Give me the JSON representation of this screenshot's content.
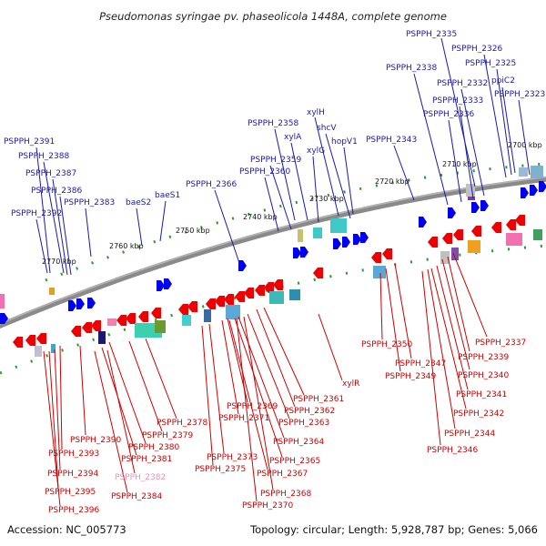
{
  "title": "Pseudomonas syringae pv. phaseolicola 1448A, complete genome",
  "accession": "Accession: NC_005773",
  "summary": "Topology: circular; Length: 5,928,787 bp; Genes: 5,066",
  "colors": {
    "backbone": "#808080",
    "forward": "#0000ee",
    "reverse": "#ee0000",
    "tick": "#2a9a2a",
    "label_blue": "#1a1aaa",
    "label_red": "#cc0000",
    "label_pink": "#f090b0"
  },
  "scale_labels": [
    "2700 kbp",
    "2710 kbp",
    "2720 kbp",
    "2730 kbp",
    "2740 kbp",
    "2750 kbp",
    "2760 kbp",
    "2770 kbp"
  ],
  "blue_labels": [
    "PSPPH_2335",
    "PSPPH_2326",
    "PSPPH_2325",
    "ppiC2",
    "PSPPH_2338",
    "PSPPH_2332",
    "PSPPH_2333",
    "PSPPH_2323",
    "PSPPH_2336",
    "xylH",
    "PSPPH_2358",
    "shcV",
    "xylA",
    "hopV1",
    "PSPPH_2343",
    "xylG",
    "PSPPH_2359",
    "PSPPH_2360",
    "PSPPH_2391",
    "PSPPH_2388",
    "PSPPH_2387",
    "PSPPH_2386",
    "PSPPH_2366",
    "baeS1",
    "PSPPH_2383",
    "baeS2",
    "PSPPH_2392"
  ],
  "red_labels": [
    "PSPPH_2350",
    "PSPPH_2337",
    "PSPPH_2347",
    "PSPPH_2339",
    "PSPPH_2349",
    "PSPPH_2340",
    "xylR",
    "PSPPH_2341",
    "PSPPH_2361",
    "PSPPH_2369",
    "PSPPH_2362",
    "PSPPH_2342",
    "PSPPH_2371",
    "PSPPH_2363",
    "PSPPH_2378",
    "PSPPH_2344",
    "PSPPH_2379",
    "PSPPH_2364",
    "PSPPH_2390",
    "PSPPH_2380",
    "PSPPH_2346",
    "PSPPH_2393",
    "PSPPH_2381",
    "PSPPH_2373",
    "PSPPH_2365",
    "PSPPH_2375",
    "PSPPH_2394",
    "PSPPH_2367",
    "PSPPH_2382",
    "PSPPH_2368",
    "PSPPH_2395",
    "PSPPH_2384",
    "PSPPH_2370",
    "PSPPH_2396"
  ]
}
